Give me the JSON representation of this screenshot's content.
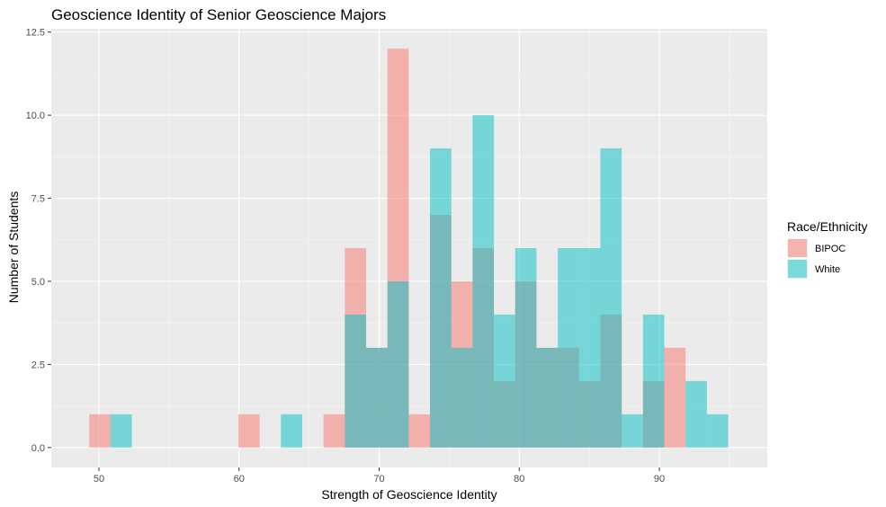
{
  "chart_data": {
    "type": "bar",
    "subtype": "overlapping histogram",
    "title": "Geoscience Identity of Senior Geoscience Majors",
    "xlabel": "Strength of Geoscience Identity",
    "ylabel": "Number of Students",
    "xlim": [
      46.6,
      97.7
    ],
    "ylim": [
      -0.6,
      12.6
    ],
    "x_ticks": [
      50,
      60,
      70,
      80,
      90
    ],
    "y_ticks": [
      0.0,
      2.5,
      5.0,
      7.5,
      10.0,
      12.5
    ],
    "y_tick_labels": [
      "0.0",
      "2.5",
      "5.0",
      "7.5",
      "10.0",
      "12.5"
    ],
    "bin_width": 1.52,
    "bin_starts": [
      49.31,
      50.83,
      52.35,
      53.87,
      55.39,
      56.91,
      58.43,
      59.95,
      61.47,
      62.99,
      64.51,
      66.03,
      67.55,
      69.07,
      70.59,
      72.11,
      73.63,
      75.15,
      76.67,
      78.19,
      79.71,
      81.23,
      82.75,
      84.27,
      85.79,
      87.31,
      88.83,
      90.35,
      91.87,
      93.39
    ],
    "grid": true,
    "legend_position": "right",
    "legend_title": "Race/Ethnicity",
    "series": [
      {
        "name": "BIPOC",
        "color": "#F8766D",
        "values": [
          1,
          0,
          0,
          0,
          0,
          0,
          0,
          1,
          0,
          0,
          0,
          1,
          6,
          3,
          12,
          1,
          7,
          5,
          6,
          2,
          5,
          3,
          3,
          2,
          4,
          0,
          2,
          3,
          0,
          0
        ]
      },
      {
        "name": "White",
        "color": "#00BFC4",
        "values": [
          0,
          1,
          0,
          0,
          0,
          0,
          0,
          0,
          0,
          1,
          0,
          0,
          4,
          3,
          5,
          0,
          9,
          3,
          10,
          4,
          6,
          3,
          6,
          6,
          9,
          1,
          4,
          0,
          2,
          1
        ]
      }
    ]
  }
}
